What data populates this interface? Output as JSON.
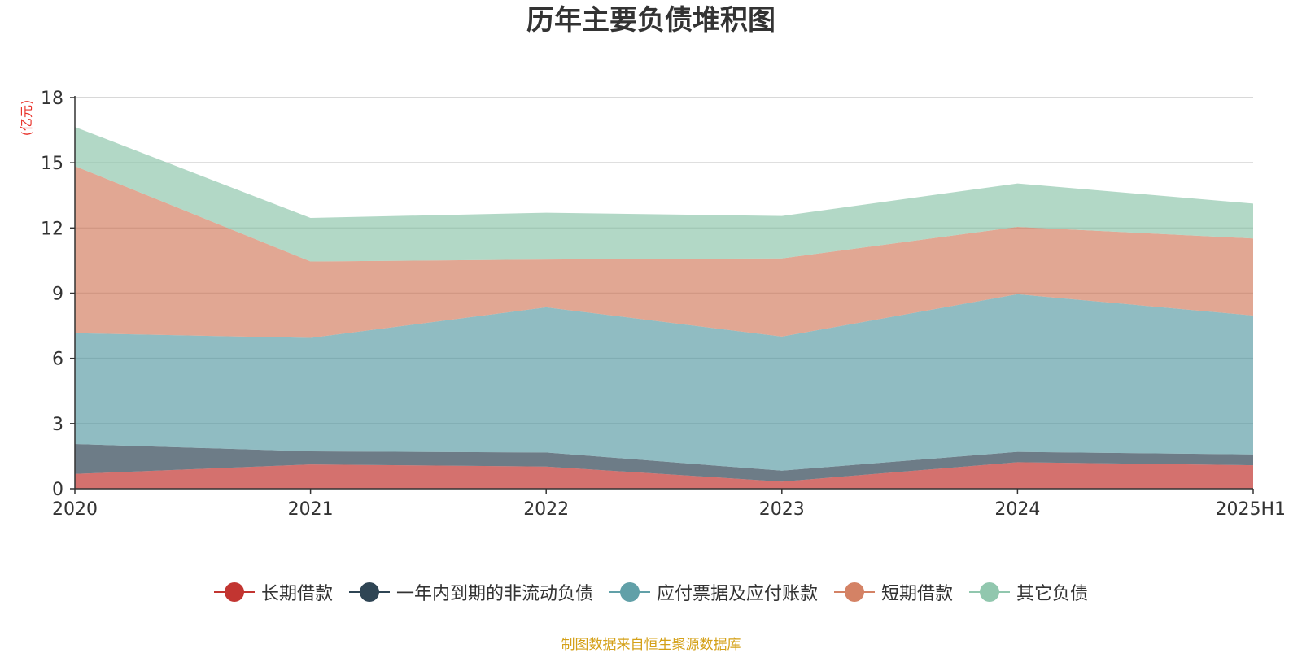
{
  "chart_data": {
    "type": "area",
    "stacked": true,
    "title": "历年主要负债堆积图",
    "y_unit_label": "(亿元)",
    "categories": [
      "2020",
      "2021",
      "2022",
      "2023",
      "2024",
      "2025H1"
    ],
    "ylim": [
      0,
      18
    ],
    "yticks": [
      "0",
      "3",
      "6",
      "9",
      "12",
      "15",
      "18"
    ],
    "grid": true,
    "legend_position": "bottom",
    "series": [
      {
        "name": "长期借款",
        "color": "#c23531",
        "values": [
          0.68,
          1.12,
          1.02,
          0.33,
          1.22,
          1.08
        ]
      },
      {
        "name": "一年内到期的非流动负债",
        "color": "#2f4554",
        "values": [
          1.38,
          0.6,
          0.65,
          0.5,
          0.48,
          0.5
        ]
      },
      {
        "name": "应付票据及应付账款",
        "color": "#61a0a8",
        "values": [
          5.1,
          5.22,
          6.68,
          6.17,
          7.25,
          6.39
        ]
      },
      {
        "name": "短期借款",
        "color": "#d48265",
        "values": [
          7.69,
          3.52,
          2.2,
          3.6,
          3.1,
          3.55
        ]
      },
      {
        "name": "其它负债",
        "color": "#91c7ae",
        "values": [
          1.8,
          2.0,
          2.15,
          1.95,
          2.0,
          1.6
        ]
      }
    ]
  },
  "source_note": "制图数据来自恒生聚源数据库"
}
